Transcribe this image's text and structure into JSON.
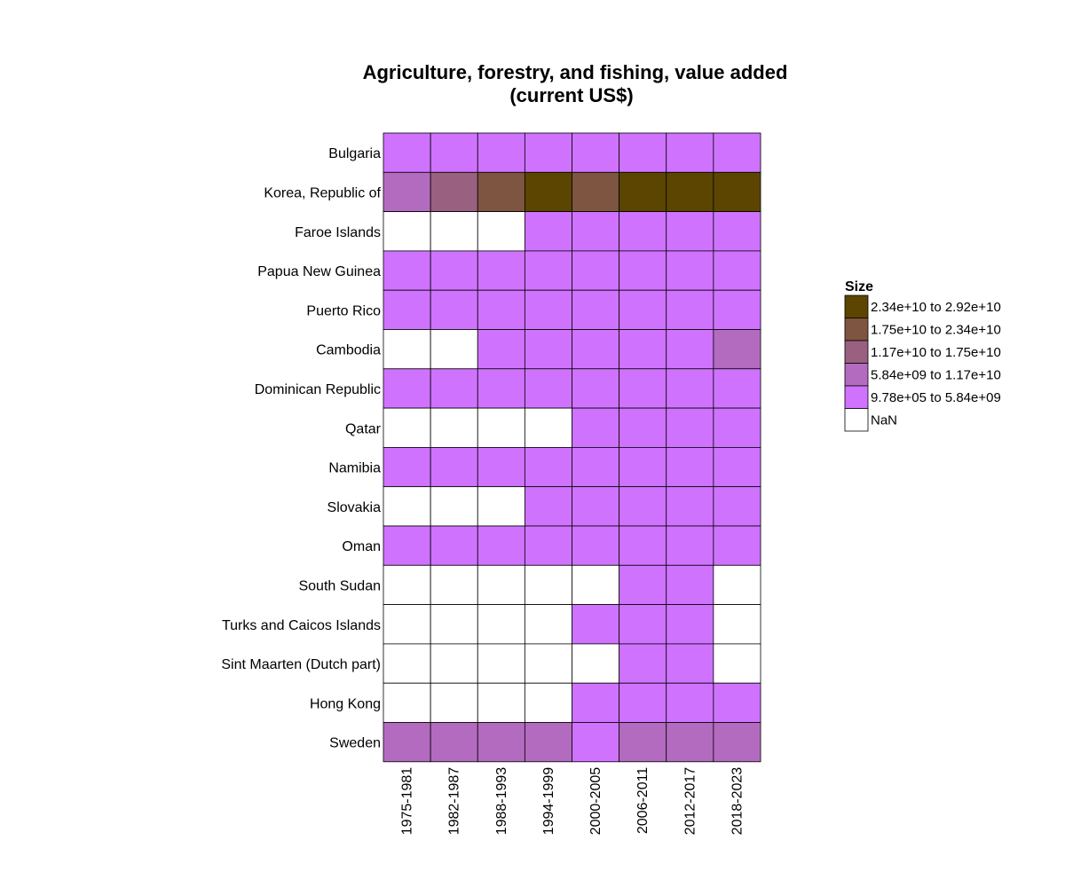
{
  "chart_data": {
    "type": "heatmap",
    "title": [
      "Agriculture, forestry, and fishing, value added",
      "(current US$)"
    ],
    "xlabel": "",
    "ylabel": "",
    "x": [
      "1975-1981",
      "1982-1987",
      "1988-1993",
      "1994-1999",
      "2000-2005",
      "2006-2011",
      "2012-2017",
      "2018-2023"
    ],
    "y": [
      "Bulgaria",
      "Korea, Republic of",
      "Faroe Islands",
      "Papua New Guinea",
      "Puerto Rico",
      "Cambodia",
      "Dominican Republic",
      "Qatar",
      "Namibia",
      "Slovakia",
      "Oman",
      "South Sudan",
      "Turks and Caicos Islands",
      "Sint Maarten (Dutch part)",
      "Hong Kong",
      "Sweden"
    ],
    "legend": {
      "title": "Size",
      "position": "right",
      "bins": [
        {
          "label": "2.34e+10 to 2.92e+10",
          "color": "#5c4500"
        },
        {
          "label": "1.75e+10 to 2.34e+10",
          "color": "#7e5540"
        },
        {
          "label": "1.17e+10 to 1.75e+10",
          "color": "#9a6080"
        },
        {
          "label": "5.84e+09 to 1.17e+10",
          "color": "#b36bbf"
        },
        {
          "label": "9.78e+05 to 5.84e+09",
          "color": "#cf73ff"
        },
        {
          "label": "NaN",
          "color": "#ffffff"
        }
      ]
    },
    "bin_index_by_row": [
      [
        4,
        4,
        4,
        4,
        4,
        4,
        4,
        4
      ],
      [
        3,
        2,
        1,
        0,
        1,
        0,
        0,
        0
      ],
      [
        5,
        5,
        5,
        4,
        4,
        4,
        4,
        4
      ],
      [
        4,
        4,
        4,
        4,
        4,
        4,
        4,
        4
      ],
      [
        4,
        4,
        4,
        4,
        4,
        4,
        4,
        4
      ],
      [
        5,
        5,
        4,
        4,
        4,
        4,
        4,
        3
      ],
      [
        4,
        4,
        4,
        4,
        4,
        4,
        4,
        4
      ],
      [
        5,
        5,
        5,
        5,
        4,
        4,
        4,
        4
      ],
      [
        4,
        4,
        4,
        4,
        4,
        4,
        4,
        4
      ],
      [
        5,
        5,
        5,
        4,
        4,
        4,
        4,
        4
      ],
      [
        4,
        4,
        4,
        4,
        4,
        4,
        4,
        4
      ],
      [
        5,
        5,
        5,
        5,
        5,
        4,
        4,
        5
      ],
      [
        5,
        5,
        5,
        5,
        4,
        4,
        4,
        5
      ],
      [
        5,
        5,
        5,
        5,
        5,
        4,
        4,
        5
      ],
      [
        5,
        5,
        5,
        5,
        4,
        4,
        4,
        4
      ],
      [
        3,
        3,
        3,
        3,
        4,
        3,
        3,
        3
      ]
    ]
  }
}
